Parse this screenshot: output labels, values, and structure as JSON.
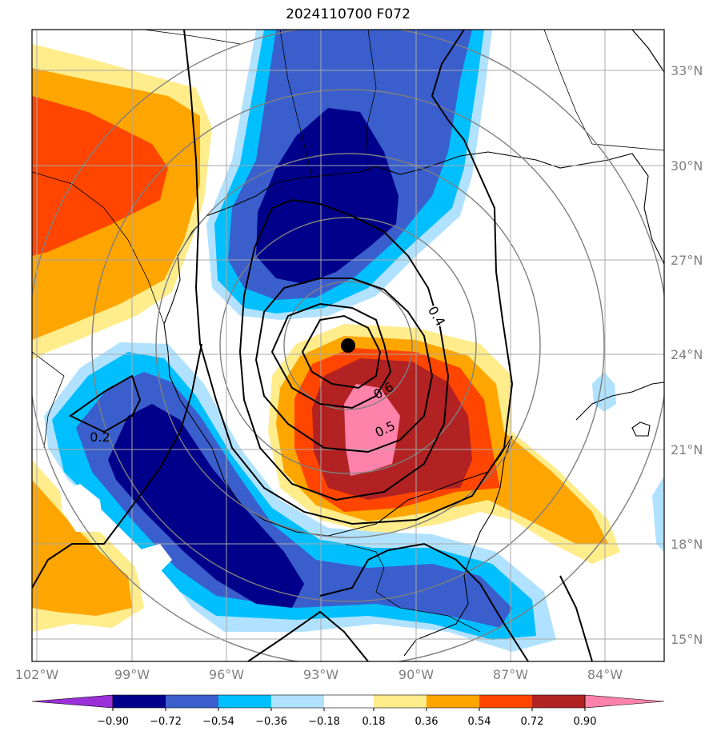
{
  "title": "2024110700 F072",
  "map": {
    "lon_ticks": [
      "102°W",
      "99°W",
      "96°W",
      "93°W",
      "90°W",
      "87°W",
      "84°W"
    ],
    "lat_ticks": [
      "33°N",
      "30°N",
      "27°N",
      "24°N",
      "21°N",
      "18°N",
      "15°N"
    ],
    "contour_labels": [
      "0.4",
      "0.6",
      "0.5",
      "0.2"
    ],
    "storm_center": {
      "lon": "92.1°W",
      "lat": "24.3°N"
    }
  },
  "colorbar": {
    "ticks": [
      "−0.90",
      "−0.72",
      "−0.54",
      "−0.36",
      "−0.18",
      "0.18",
      "0.36",
      "0.54",
      "0.72",
      "0.90"
    ],
    "colors": [
      "#9b30d9",
      "#00008b",
      "#3a5fcd",
      "#00bfff",
      "#b0e2ff",
      "#ffffff",
      "#ffec8b",
      "#ffa500",
      "#ff4500",
      "#b22222",
      "#ff82ab"
    ]
  },
  "colors": {
    "grid": "#a8a8a8",
    "range_rings": "#7f7f7f",
    "coast": "#000000"
  }
}
